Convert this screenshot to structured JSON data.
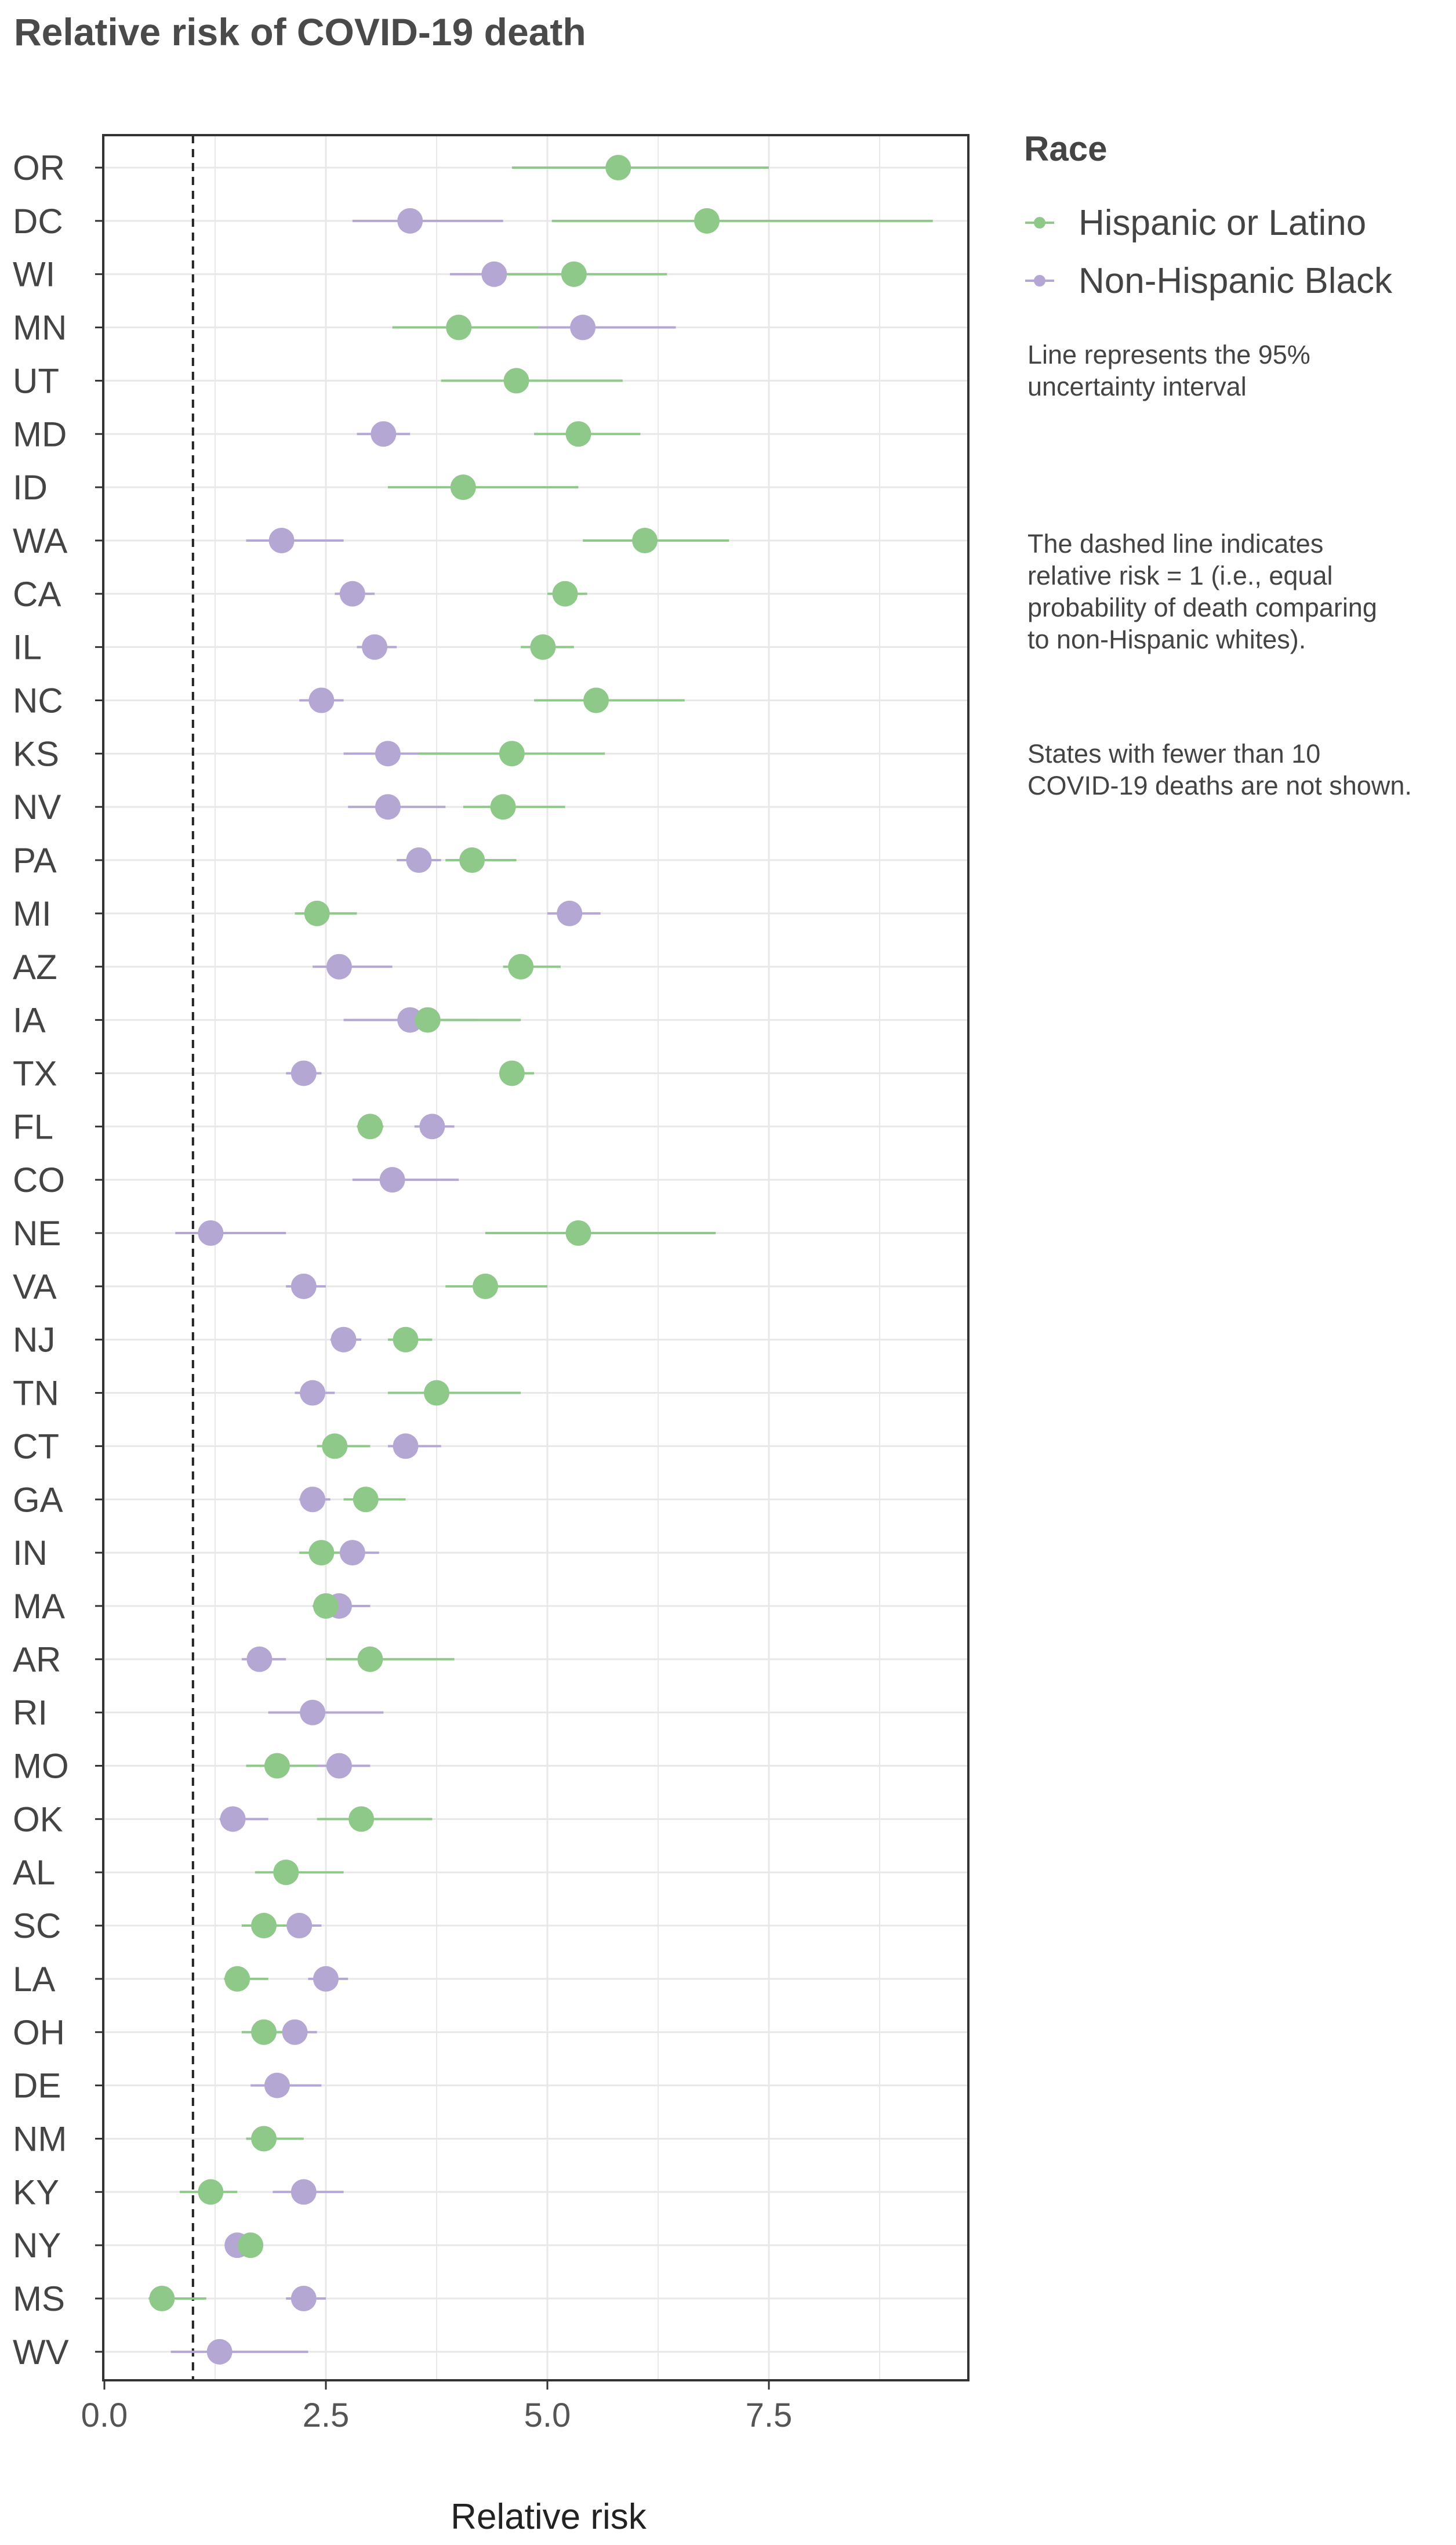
{
  "chart_data": {
    "type": "scatter",
    "title": "Relative risk of COVID-19 death",
    "xlabel": "Relative risk",
    "ylabel": "",
    "xlim": [
      0,
      9.8
    ],
    "x_ticks": [
      "0.0",
      "2.5",
      "5.0",
      "7.5"
    ],
    "x_tick_values": [
      0,
      2.5,
      5,
      7.5
    ],
    "reference_line": 1,
    "grid": true,
    "legend": {
      "title": "Race",
      "placement": "right",
      "entries": [
        {
          "name": "Hispanic or Latino",
          "color": "#8fc98a"
        },
        {
          "name": "Non-Hispanic Black",
          "color": "#b5a7d4"
        }
      ]
    },
    "notes": [
      [
        "Line represents the 95%",
        "uncertainty interval"
      ],
      [
        "The dashed line indicates",
        "relative risk = 1 (i.e., equal",
        "probability of death comparing",
        "to non-Hispanic whites)."
      ],
      [
        "States with fewer than 10",
        "COVID-19 deaths are not shown."
      ]
    ],
    "states": [
      {
        "state": "OR",
        "hispanic": [
          5.8,
          4.6,
          7.5
        ],
        "black": null
      },
      {
        "state": "DC",
        "hispanic": [
          6.8,
          5.05,
          9.35
        ],
        "black": [
          3.45,
          2.8,
          4.5
        ]
      },
      {
        "state": "WI",
        "hispanic": [
          5.3,
          4.4,
          6.35
        ],
        "black": [
          4.4,
          3.9,
          5.0
        ]
      },
      {
        "state": "MN",
        "hispanic": [
          4.0,
          3.25,
          4.9
        ],
        "black": [
          5.4,
          4.5,
          6.45
        ]
      },
      {
        "state": "UT",
        "hispanic": [
          4.65,
          3.8,
          5.85
        ],
        "black": null
      },
      {
        "state": "MD",
        "hispanic": [
          5.35,
          4.85,
          6.05
        ],
        "black": [
          3.15,
          2.85,
          3.45
        ]
      },
      {
        "state": "ID",
        "hispanic": [
          4.05,
          3.2,
          5.35
        ],
        "black": null
      },
      {
        "state": "WA",
        "hispanic": [
          6.1,
          5.4,
          7.05
        ],
        "black": [
          2.0,
          1.6,
          2.7
        ]
      },
      {
        "state": "CA",
        "hispanic": [
          5.2,
          5.0,
          5.45
        ],
        "black": [
          2.8,
          2.6,
          3.05
        ]
      },
      {
        "state": "IL",
        "hispanic": [
          4.95,
          4.7,
          5.3
        ],
        "black": [
          3.05,
          2.85,
          3.3
        ]
      },
      {
        "state": "NC",
        "hispanic": [
          5.55,
          4.85,
          6.55
        ],
        "black": [
          2.45,
          2.2,
          2.7
        ]
      },
      {
        "state": "KS",
        "hispanic": [
          4.6,
          3.55,
          5.65
        ],
        "black": [
          3.2,
          2.7,
          3.9
        ]
      },
      {
        "state": "NV",
        "hispanic": [
          4.5,
          4.05,
          5.2
        ],
        "black": [
          3.2,
          2.75,
          3.85
        ]
      },
      {
        "state": "PA",
        "hispanic": [
          4.15,
          3.85,
          4.65
        ],
        "black": [
          3.55,
          3.3,
          3.8
        ]
      },
      {
        "state": "MI",
        "hispanic": [
          2.4,
          2.15,
          2.85
        ],
        "black": [
          5.25,
          5.0,
          5.6
        ]
      },
      {
        "state": "AZ",
        "hispanic": [
          4.7,
          4.5,
          5.15
        ],
        "black": [
          2.65,
          2.35,
          3.25
        ]
      },
      {
        "state": "IA",
        "hispanic": [
          3.65,
          3.4,
          4.7
        ],
        "black": [
          3.45,
          2.7,
          4.2
        ]
      },
      {
        "state": "TX",
        "hispanic": [
          4.6,
          4.5,
          4.85
        ],
        "black": [
          2.25,
          2.05,
          2.45
        ]
      },
      {
        "state": "FL",
        "hispanic": [
          3.0,
          2.85,
          3.15
        ],
        "black": [
          3.7,
          3.5,
          3.95
        ]
      },
      {
        "state": "CO",
        "hispanic": null,
        "black": [
          3.25,
          2.8,
          4.0
        ]
      },
      {
        "state": "NE",
        "hispanic": [
          5.35,
          4.3,
          6.9
        ],
        "black": [
          1.2,
          0.8,
          2.05
        ]
      },
      {
        "state": "VA",
        "hispanic": [
          4.3,
          3.85,
          5.0
        ],
        "black": [
          2.25,
          2.05,
          2.5
        ]
      },
      {
        "state": "NJ",
        "hispanic": [
          3.4,
          3.2,
          3.7
        ],
        "black": [
          2.7,
          2.55,
          2.9
        ]
      },
      {
        "state": "TN",
        "hispanic": [
          3.75,
          3.2,
          4.7
        ],
        "black": [
          2.35,
          2.15,
          2.6
        ]
      },
      {
        "state": "CT",
        "hispanic": [
          2.6,
          2.4,
          3.0
        ],
        "black": [
          3.4,
          3.2,
          3.8
        ]
      },
      {
        "state": "GA",
        "hispanic": [
          2.95,
          2.7,
          3.4
        ],
        "black": [
          2.35,
          2.2,
          2.55
        ]
      },
      {
        "state": "IN",
        "hispanic": [
          2.45,
          2.2,
          2.75
        ],
        "black": [
          2.8,
          2.55,
          3.1
        ]
      },
      {
        "state": "MA",
        "hispanic": [
          2.5,
          2.35,
          2.7
        ],
        "black": [
          2.65,
          2.45,
          3.0
        ]
      },
      {
        "state": "AR",
        "hispanic": [
          3.0,
          2.5,
          3.95
        ],
        "black": [
          1.75,
          1.55,
          2.05
        ]
      },
      {
        "state": "RI",
        "hispanic": null,
        "black": [
          2.35,
          1.85,
          3.15
        ]
      },
      {
        "state": "MO",
        "hispanic": [
          1.95,
          1.6,
          2.4
        ],
        "black": [
          2.65,
          2.35,
          3.0
        ]
      },
      {
        "state": "OK",
        "hispanic": [
          2.9,
          2.4,
          3.7
        ],
        "black": [
          1.45,
          1.3,
          1.85
        ]
      },
      {
        "state": "AL",
        "hispanic": [
          2.05,
          1.7,
          2.7
        ],
        "black": null
      },
      {
        "state": "SC",
        "hispanic": [
          1.8,
          1.55,
          2.1
        ],
        "black": [
          2.2,
          2.0,
          2.45
        ]
      },
      {
        "state": "LA",
        "hispanic": [
          1.5,
          1.35,
          1.85
        ],
        "black": [
          2.5,
          2.3,
          2.75
        ]
      },
      {
        "state": "OH",
        "hispanic": [
          1.8,
          1.55,
          2.05
        ],
        "black": [
          2.15,
          1.95,
          2.4
        ]
      },
      {
        "state": "DE",
        "hispanic": null,
        "black": [
          1.95,
          1.65,
          2.45
        ]
      },
      {
        "state": "NM",
        "hispanic": [
          1.8,
          1.6,
          2.25
        ],
        "black": null
      },
      {
        "state": "KY",
        "hispanic": [
          1.2,
          0.85,
          1.5
        ],
        "black": [
          2.25,
          1.9,
          2.7
        ]
      },
      {
        "state": "NY",
        "hispanic": [
          1.65,
          1.55,
          1.75
        ],
        "black": [
          1.5,
          1.45,
          1.6
        ]
      },
      {
        "state": "MS",
        "hispanic": [
          0.65,
          0.5,
          1.15
        ],
        "black": [
          2.25,
          2.05,
          2.5
        ]
      },
      {
        "state": "WV",
        "hispanic": null,
        "black": [
          1.3,
          0.75,
          2.3
        ]
      }
    ]
  },
  "colors": {
    "hispanic": "#8fc98a",
    "black": "#b5a7d4",
    "grid": "#e8e8e8",
    "panel_border": "#333333"
  }
}
